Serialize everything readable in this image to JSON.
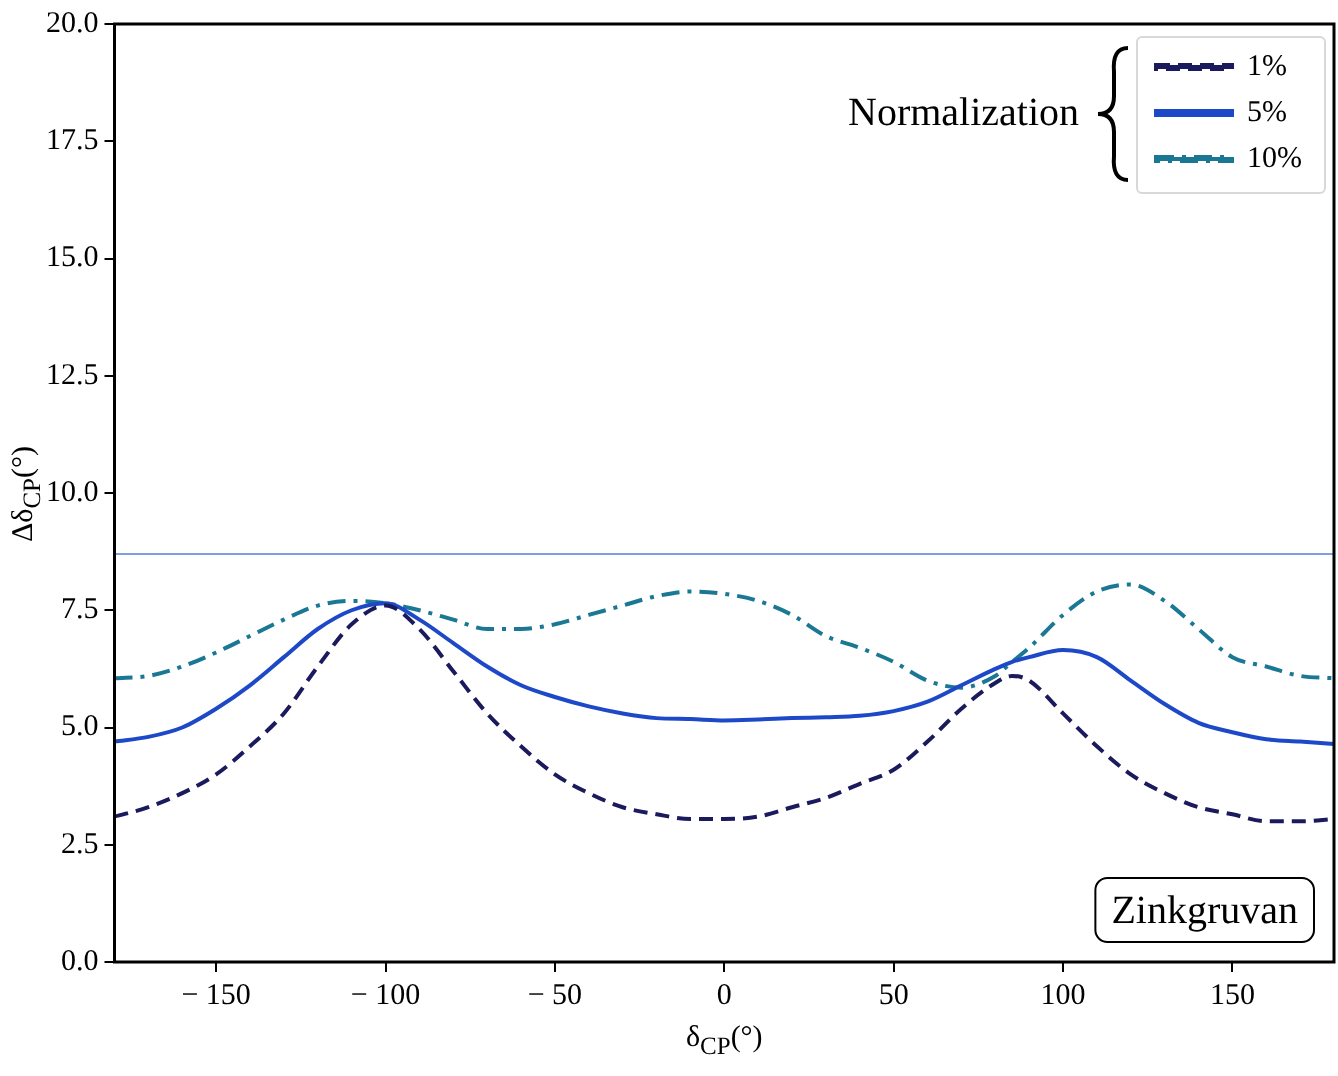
{
  "chart_data": {
    "type": "line",
    "xlabel": "δ$_{CP}$(°)",
    "ylabel": "Δδ$_{CP}$(°)",
    "legend_title": "Normalization",
    "x": [
      -180,
      -170,
      -160,
      -150,
      -140,
      -130,
      -120,
      -110,
      -100,
      -90,
      -80,
      -70,
      -60,
      -50,
      -40,
      -30,
      -20,
      -10,
      0,
      10,
      20,
      30,
      40,
      50,
      60,
      70,
      80,
      85,
      90,
      100,
      110,
      120,
      130,
      140,
      150,
      160,
      170,
      180
    ],
    "series": [
      {
        "name": "1%",
        "color": "#1b1a5c",
        "line_style": "dashed",
        "values": [
          3.1,
          3.3,
          3.6,
          4.0,
          4.6,
          5.3,
          6.3,
          7.2,
          7.6,
          7.1,
          6.2,
          5.3,
          4.6,
          4.0,
          3.6,
          3.3,
          3.15,
          3.05,
          3.05,
          3.1,
          3.3,
          3.5,
          3.8,
          4.1,
          4.7,
          5.4,
          5.95,
          6.1,
          6.0,
          5.3,
          4.6,
          4.0,
          3.6,
          3.3,
          3.15,
          3.0,
          3.0,
          3.05
        ]
      },
      {
        "name": "5%",
        "color": "#1d49c9",
        "line_style": "solid",
        "values": [
          4.7,
          4.8,
          5.0,
          5.4,
          5.9,
          6.5,
          7.1,
          7.5,
          7.65,
          7.3,
          6.8,
          6.3,
          5.9,
          5.65,
          5.45,
          5.3,
          5.2,
          5.18,
          5.15,
          5.17,
          5.2,
          5.22,
          5.25,
          5.35,
          5.55,
          5.9,
          6.25,
          6.4,
          6.5,
          6.65,
          6.5,
          6.0,
          5.5,
          5.1,
          4.9,
          4.75,
          4.7,
          4.65
        ]
      },
      {
        "name": "10%",
        "color": "#1a7894",
        "line_style": "dashdot",
        "values": [
          6.05,
          6.1,
          6.3,
          6.6,
          6.95,
          7.3,
          7.6,
          7.7,
          7.65,
          7.5,
          7.3,
          7.1,
          7.1,
          7.2,
          7.4,
          7.6,
          7.8,
          7.9,
          7.85,
          7.7,
          7.4,
          6.95,
          6.7,
          6.4,
          6.0,
          5.85,
          6.1,
          6.4,
          6.7,
          7.4,
          7.9,
          8.05,
          7.7,
          7.1,
          6.5,
          6.3,
          6.1,
          6.05
        ]
      }
    ],
    "xlim": [
      -180,
      180
    ],
    "xticks": [
      {
        "value": -150,
        "label": "− 150"
      },
      {
        "value": -100,
        "label": "− 100"
      },
      {
        "value": -50,
        "label": "− 50"
      },
      0,
      50,
      100,
      150
    ],
    "ylim": [
      0,
      20
    ],
    "yticks": [
      {
        "value": 0,
        "label": "0.0"
      },
      {
        "value": 2.5,
        "label": "2.5"
      },
      {
        "value": 5,
        "label": "5.0"
      },
      {
        "value": 7.5,
        "label": "7.5"
      },
      {
        "value": 10,
        "label": "10.0"
      },
      {
        "value": 12.5,
        "label": "12.5"
      },
      {
        "value": 15,
        "label": "15.0"
      },
      {
        "value": 17.5,
        "label": "17.5"
      },
      {
        "value": 20,
        "label": "20.0"
      }
    ],
    "ref_lines": [
      {
        "axis": "y",
        "value": 8.7,
        "color": "#7f9ee3"
      }
    ],
    "annotations": [
      "Zinkgruvan"
    ],
    "grid": false,
    "legend": "top right",
    "marker": "none"
  }
}
